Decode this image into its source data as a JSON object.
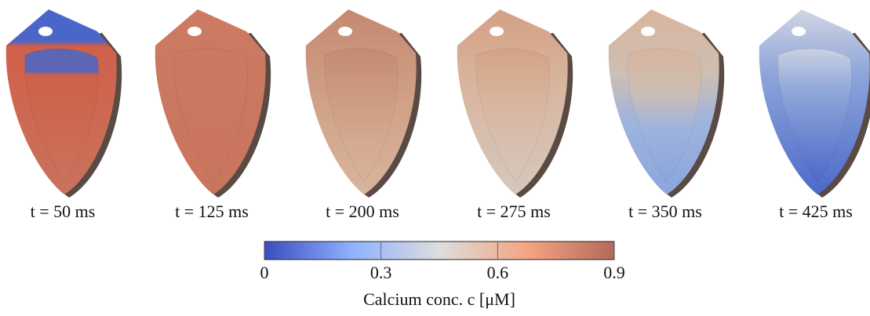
{
  "panels": [
    {
      "label": "t = 50  ms"
    },
    {
      "label": "t = 125  ms"
    },
    {
      "label": "t = 200  ms"
    },
    {
      "label": "t = 275  ms"
    },
    {
      "label": "t = 350  ms"
    },
    {
      "label": "t = 425  ms"
    }
  ],
  "colorbar": {
    "label": "Calcium conc. c [μM]",
    "lim": [
      0,
      0.9
    ],
    "ticks": [
      0,
      0.3,
      0.6,
      0.9
    ],
    "colors": [
      "#3b4cc0",
      "#8fb1fe",
      "#dddddd",
      "#f4a582",
      "#b4695a"
    ]
  }
}
